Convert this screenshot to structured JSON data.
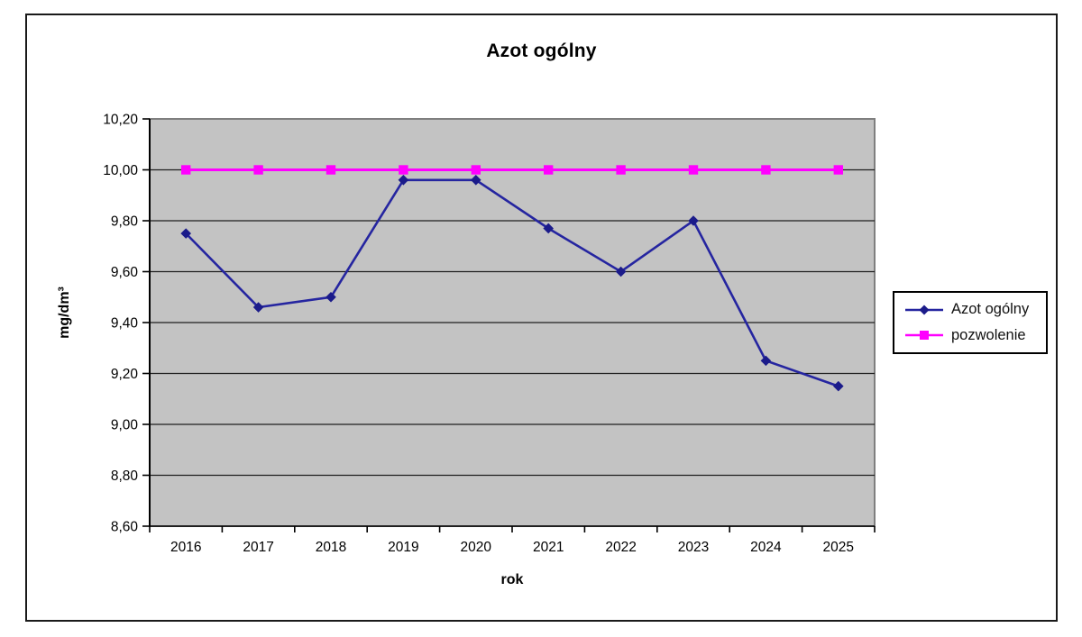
{
  "chart_data": {
    "type": "line",
    "title": "Azot ogólny",
    "xlabel": "rok",
    "ylabel": "mg/dm³",
    "categories": [
      "2016",
      "2017",
      "2018",
      "2019",
      "2020",
      "2021",
      "2022",
      "2023",
      "2024",
      "2025"
    ],
    "series": [
      {
        "name": "Azot ogólny",
        "values": [
          9.75,
          9.46,
          9.5,
          9.96,
          9.96,
          9.77,
          9.6,
          9.8,
          9.25,
          9.15
        ],
        "color": "#2525A0",
        "marker_color": "#1B1B8A",
        "marker": "diamond"
      },
      {
        "name": "pozwolenie",
        "values": [
          10.0,
          10.0,
          10.0,
          10.0,
          10.0,
          10.0,
          10.0,
          10.0,
          10.0,
          10.0
        ],
        "color": "#FF00FF",
        "marker_color": "#FF00FF",
        "marker": "square"
      }
    ],
    "ylim": [
      8.6,
      10.2
    ],
    "y_tick_values": [
      10.2,
      10.0,
      9.8,
      9.6,
      9.4,
      9.2,
      9.0,
      8.8,
      8.6
    ],
    "y_tick_labels": [
      "10,20",
      "10,00",
      "9,80",
      "9,60",
      "9,40",
      "9,20",
      "9,00",
      "8,80",
      "8,60"
    ],
    "grid": true,
    "legend_position": "right",
    "style": {
      "plot_bg": "#C3C3C3",
      "plot_border": "#7F7F7F",
      "gridline_color": "#1F1F1F",
      "axis_color": "#000000",
      "text_color": "#000000"
    }
  }
}
